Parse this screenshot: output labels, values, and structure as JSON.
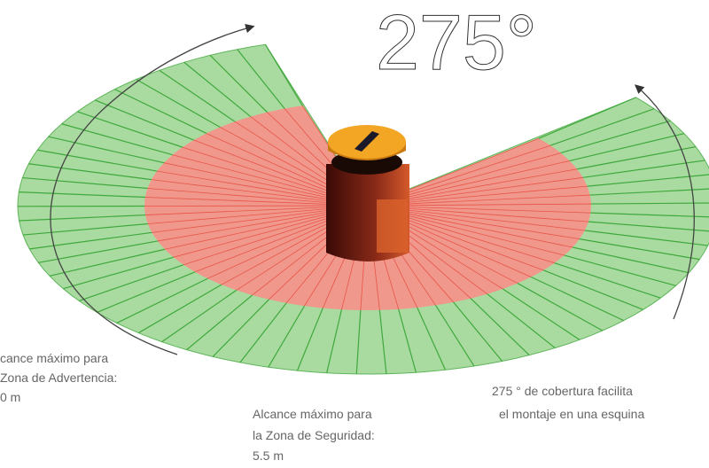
{
  "title": "275°",
  "warning_zone": {
    "lines": [
      "cance máximo para",
      "Zona de Advertencia:",
      "0  m"
    ]
  },
  "safety_zone": {
    "lines": [
      "Alcance máximo para",
      "la Zona de Seguridad:",
      "5.5 m"
    ]
  },
  "coverage": {
    "lines": [
      "275 ° de cobertura facilita",
      "el montaje en una esquina"
    ]
  }
}
